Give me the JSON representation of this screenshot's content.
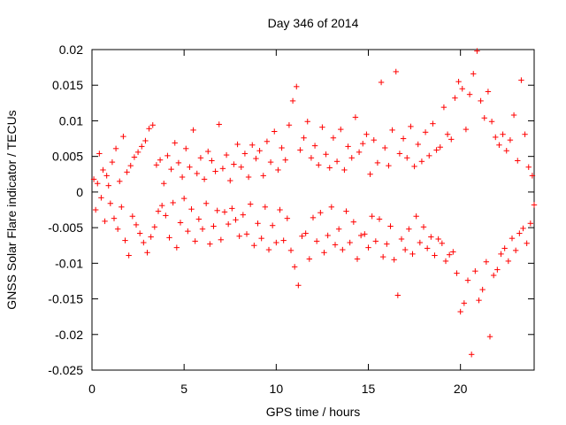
{
  "chart_data": {
    "type": "scatter",
    "title": "Day 346 of 2014",
    "xlabel": "GPS time / hours",
    "ylabel": "GNSS Solar Flare indicator / TECUs",
    "xlim": [
      0,
      24
    ],
    "ylim": [
      -0.025,
      0.02
    ],
    "x_ticks": [
      0,
      5,
      10,
      15,
      20
    ],
    "x_tick_labels": [
      "0",
      "5",
      "10",
      "15",
      "20"
    ],
    "y_ticks": [
      -0.025,
      -0.02,
      -0.015,
      -0.01,
      -0.005,
      0,
      0.005,
      0.01,
      0.015,
      0.02
    ],
    "y_tick_labels": [
      "-0.025",
      "-0.02",
      "-0.015",
      "-0.01",
      "-0.005",
      "0",
      "0.005",
      "0.01",
      "0.015",
      "0.02"
    ],
    "grid": false,
    "legend": "none",
    "marker": "plus",
    "marker_color": "#ff0000",
    "series": [
      {
        "values": [
          [
            0.1,
            0.0018
          ],
          [
            0.2,
            -0.0025
          ],
          [
            0.3,
            0.0012
          ],
          [
            0.4,
            0.0054
          ],
          [
            0.5,
            -0.0008
          ],
          [
            0.6,
            0.0031
          ],
          [
            0.7,
            -0.0041
          ],
          [
            0.8,
            0.0023
          ],
          [
            0.9,
            0.0009
          ],
          [
            1.0,
            -0.0016
          ],
          [
            1.1,
            0.0042
          ],
          [
            1.2,
            -0.0037
          ],
          [
            1.3,
            0.0061
          ],
          [
            1.4,
            -0.0052
          ],
          [
            1.5,
            0.0015
          ],
          [
            1.6,
            -0.0021
          ],
          [
            1.7,
            0.0078
          ],
          [
            1.8,
            -0.0068
          ],
          [
            1.9,
            0.0028
          ],
          [
            2.0,
            -0.0089
          ],
          [
            2.1,
            0.0037
          ],
          [
            2.2,
            -0.0034
          ],
          [
            2.3,
            0.0049
          ],
          [
            2.4,
            -0.0046
          ],
          [
            2.5,
            0.0056
          ],
          [
            2.6,
            -0.0058
          ],
          [
            2.7,
            0.0064
          ],
          [
            2.8,
            -0.0071
          ],
          [
            2.9,
            0.0072
          ],
          [
            3.0,
            -0.0085
          ],
          [
            3.1,
            0.0089
          ],
          [
            3.2,
            -0.0063
          ],
          [
            3.3,
            0.0094
          ],
          [
            3.4,
            -0.0049
          ],
          [
            3.5,
            0.0038
          ],
          [
            3.6,
            -0.0027
          ],
          [
            3.7,
            0.0045
          ],
          [
            3.8,
            -0.0019
          ],
          [
            3.9,
            0.0012
          ],
          [
            4.0,
            -0.0033
          ],
          [
            4.1,
            0.0051
          ],
          [
            4.2,
            -0.0064
          ],
          [
            4.3,
            0.0032
          ],
          [
            4.4,
            -0.0015
          ],
          [
            4.5,
            0.0069
          ],
          [
            4.6,
            -0.0078
          ],
          [
            4.7,
            0.0041
          ],
          [
            4.8,
            -0.0043
          ],
          [
            4.9,
            0.0021
          ],
          [
            5.0,
            -0.0009
          ],
          [
            5.1,
            0.0061
          ],
          [
            5.2,
            -0.0055
          ],
          [
            5.3,
            0.0035
          ],
          [
            5.4,
            -0.0024
          ],
          [
            5.5,
            0.0087
          ],
          [
            5.6,
            -0.0069
          ],
          [
            5.7,
            0.0026
          ],
          [
            5.8,
            -0.0038
          ],
          [
            5.9,
            0.0048
          ],
          [
            6.0,
            -0.0052
          ],
          [
            6.1,
            0.0018
          ],
          [
            6.2,
            -0.0016
          ],
          [
            6.3,
            0.0057
          ],
          [
            6.4,
            -0.0073
          ],
          [
            6.5,
            0.0044
          ],
          [
            6.6,
            -0.0048
          ],
          [
            6.7,
            0.0029
          ],
          [
            6.8,
            -0.0026
          ],
          [
            6.9,
            0.0095
          ],
          [
            7.0,
            -0.0067
          ],
          [
            7.1,
            0.0033
          ],
          [
            7.2,
            -0.0028
          ],
          [
            7.3,
            0.0052
          ],
          [
            7.4,
            -0.0045
          ],
          [
            7.5,
            0.0016
          ],
          [
            7.6,
            -0.0023
          ],
          [
            7.7,
            0.0039
          ],
          [
            7.8,
            -0.0039
          ],
          [
            7.9,
            0.0067
          ],
          [
            8.0,
            -0.0062
          ],
          [
            8.1,
            0.0035
          ],
          [
            8.2,
            -0.0032
          ],
          [
            8.3,
            0.0054
          ],
          [
            8.4,
            -0.0059
          ],
          [
            8.5,
            0.0021
          ],
          [
            8.6,
            -0.0017
          ],
          [
            8.7,
            0.0066
          ],
          [
            8.8,
            -0.0075
          ],
          [
            8.9,
            0.0047
          ],
          [
            9.0,
            -0.0044
          ],
          [
            9.1,
            0.0058
          ],
          [
            9.2,
            -0.0065
          ],
          [
            9.3,
            0.0023
          ],
          [
            9.4,
            -0.0021
          ],
          [
            9.5,
            0.0071
          ],
          [
            9.6,
            -0.0081
          ],
          [
            9.7,
            0.0042
          ],
          [
            9.8,
            -0.0047
          ],
          [
            9.9,
            0.0085
          ],
          [
            10.0,
            -0.0071
          ],
          [
            10.1,
            0.0031
          ],
          [
            10.2,
            -0.0025
          ],
          [
            10.3,
            0.0062
          ],
          [
            10.4,
            -0.0068
          ],
          [
            10.5,
            0.0045
          ],
          [
            10.6,
            -0.0037
          ],
          [
            10.7,
            0.0094
          ],
          [
            10.8,
            -0.0082
          ],
          [
            10.9,
            0.0128
          ],
          [
            11.0,
            -0.0105
          ],
          [
            11.1,
            0.0148
          ],
          [
            11.2,
            -0.0131
          ],
          [
            11.3,
            0.0059
          ],
          [
            11.4,
            -0.0062
          ],
          [
            11.5,
            0.0076
          ],
          [
            11.6,
            -0.0058
          ],
          [
            11.7,
            0.0099
          ],
          [
            11.8,
            -0.0094
          ],
          [
            11.9,
            0.0048
          ],
          [
            12.0,
            -0.0036
          ],
          [
            12.1,
            0.0065
          ],
          [
            12.2,
            -0.0069
          ],
          [
            12.3,
            0.0038
          ],
          [
            12.4,
            -0.0029
          ],
          [
            12.5,
            0.0091
          ],
          [
            12.6,
            -0.0085
          ],
          [
            12.7,
            0.0053
          ],
          [
            12.8,
            -0.0061
          ],
          [
            12.9,
            0.0034
          ],
          [
            13.0,
            -0.0021
          ],
          [
            13.1,
            0.0076
          ],
          [
            13.2,
            -0.0074
          ],
          [
            13.3,
            0.0043
          ],
          [
            13.4,
            -0.0052
          ],
          [
            13.5,
            0.0088
          ],
          [
            13.6,
            -0.0081
          ],
          [
            13.7,
            0.0031
          ],
          [
            13.8,
            -0.0027
          ],
          [
            13.9,
            0.0064
          ],
          [
            14.0,
            -0.0071
          ],
          [
            14.1,
            0.0048
          ],
          [
            14.2,
            -0.0042
          ],
          [
            14.3,
            0.0105
          ],
          [
            14.4,
            -0.0094
          ],
          [
            14.5,
            0.0056
          ],
          [
            14.6,
            -0.0061
          ],
          [
            14.7,
            0.0068
          ],
          [
            14.8,
            -0.0059
          ],
          [
            14.9,
            0.0081
          ],
          [
            15.0,
            -0.0078
          ],
          [
            15.1,
            0.0025
          ],
          [
            15.2,
            -0.0034
          ],
          [
            15.3,
            0.0073
          ],
          [
            15.4,
            -0.0069
          ],
          [
            15.5,
            0.0041
          ],
          [
            15.6,
            -0.0038
          ],
          [
            15.7,
            0.0154
          ],
          [
            15.8,
            -0.0091
          ],
          [
            15.9,
            0.0062
          ],
          [
            16.0,
            -0.0073
          ],
          [
            16.1,
            0.0037
          ],
          [
            16.2,
            -0.0048
          ],
          [
            16.3,
            0.0087
          ],
          [
            16.4,
            -0.0095
          ],
          [
            16.5,
            0.0169
          ],
          [
            16.6,
            -0.0145
          ],
          [
            16.7,
            0.0054
          ],
          [
            16.8,
            -0.0066
          ],
          [
            16.9,
            0.0075
          ],
          [
            17.0,
            -0.0081
          ],
          [
            17.1,
            0.0048
          ],
          [
            17.2,
            -0.0052
          ],
          [
            17.3,
            0.0092
          ],
          [
            17.4,
            -0.0087
          ],
          [
            17.5,
            0.0036
          ],
          [
            17.6,
            -0.0034
          ],
          [
            17.7,
            0.0067
          ],
          [
            17.8,
            -0.0071
          ],
          [
            17.9,
            0.0043
          ],
          [
            18.0,
            -0.0049
          ],
          [
            18.1,
            0.0084
          ],
          [
            18.2,
            -0.0079
          ],
          [
            18.3,
            0.0051
          ],
          [
            18.4,
            -0.0063
          ],
          [
            18.5,
            0.0096
          ],
          [
            18.6,
            -0.0089
          ],
          [
            18.7,
            0.0059
          ],
          [
            18.8,
            -0.0066
          ],
          [
            18.9,
            0.0063
          ],
          [
            19.0,
            -0.0072
          ],
          [
            19.1,
            0.0119
          ],
          [
            19.2,
            -0.0097
          ],
          [
            19.3,
            0.0081
          ],
          [
            19.4,
            -0.0088
          ],
          [
            19.5,
            0.0074
          ],
          [
            19.6,
            -0.0084
          ],
          [
            19.7,
            0.0132
          ],
          [
            19.8,
            -0.0114
          ],
          [
            19.9,
            0.0155
          ],
          [
            20.0,
            -0.0168
          ],
          [
            20.1,
            0.0145
          ],
          [
            20.2,
            -0.0156
          ],
          [
            20.3,
            0.0088
          ],
          [
            20.4,
            -0.0124
          ],
          [
            20.5,
            0.0137
          ],
          [
            20.6,
            -0.0228
          ],
          [
            20.7,
            0.0166
          ],
          [
            20.8,
            -0.0111
          ],
          [
            20.9,
            0.0198
          ],
          [
            21.0,
            -0.0152
          ],
          [
            21.1,
            0.0128
          ],
          [
            21.2,
            -0.0137
          ],
          [
            21.3,
            0.0104
          ],
          [
            21.4,
            -0.0098
          ],
          [
            21.5,
            0.0141
          ],
          [
            21.6,
            -0.0203
          ],
          [
            21.7,
            0.0099
          ],
          [
            21.8,
            -0.0117
          ],
          [
            21.9,
            0.0077
          ],
          [
            22.0,
            -0.0109
          ],
          [
            22.1,
            0.0066
          ],
          [
            22.2,
            -0.0087
          ],
          [
            22.3,
            0.0081
          ],
          [
            22.4,
            -0.0079
          ],
          [
            22.5,
            0.0058
          ],
          [
            22.6,
            -0.0097
          ],
          [
            22.7,
            0.0073
          ],
          [
            22.8,
            -0.0065
          ],
          [
            22.9,
            0.0108
          ],
          [
            23.0,
            -0.0082
          ],
          [
            23.1,
            0.0044
          ],
          [
            23.2,
            -0.0058
          ],
          [
            23.3,
            0.0157
          ],
          [
            23.4,
            -0.0051
          ],
          [
            23.5,
            0.0081
          ],
          [
            23.6,
            -0.0072
          ],
          [
            23.7,
            0.0035
          ],
          [
            23.8,
            -0.0044
          ],
          [
            23.9,
            0.0023
          ],
          [
            24.0,
            -0.0018
          ]
        ]
      }
    ]
  }
}
